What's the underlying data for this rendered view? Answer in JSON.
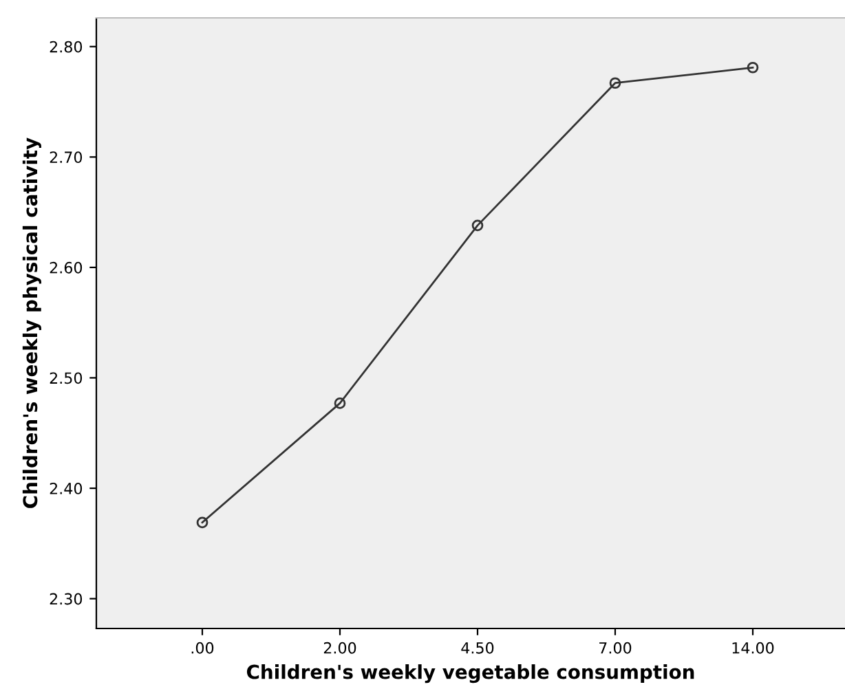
{
  "chart_data": {
    "type": "line",
    "xlabel": "Children's weekly vegetable consumption",
    "ylabel": "Children's weekly physical cativity",
    "categories": [
      ".00",
      "2.00",
      "4.50",
      "7.00",
      "14.00"
    ],
    "series": [
      {
        "color": "#333333",
        "values": [
          2.369,
          2.477,
          2.638,
          2.767,
          2.781
        ]
      }
    ],
    "ylim": [
      2.273,
      2.826
    ],
    "yticks": [
      {
        "value": 2.3,
        "label": "2.30"
      },
      {
        "value": 2.4,
        "label": "2.40"
      },
      {
        "value": 2.5,
        "label": "2.50"
      },
      {
        "value": 2.6,
        "label": "2.60"
      },
      {
        "value": 2.7,
        "label": "2.70"
      },
      {
        "value": 2.8,
        "label": "2.80"
      }
    ],
    "grid": false,
    "marker": "circle",
    "line_style": "solid"
  }
}
